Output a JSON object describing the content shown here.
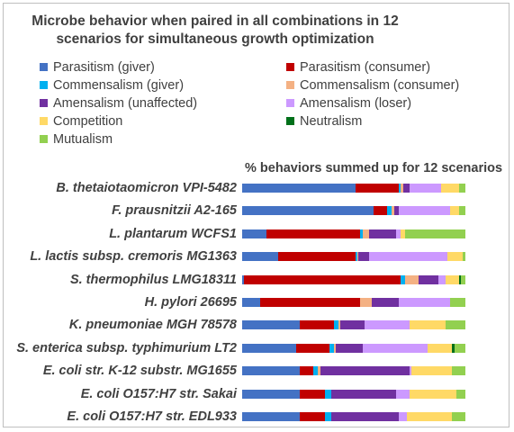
{
  "chart_data": {
    "type": "bar",
    "stacked": true,
    "orientation": "horizontal",
    "normalized": "percent",
    "title": "Microbe behavior when paired in all combinations in 12 scenarios for simultaneous growth optimization",
    "subtitle": "% behaviors summed up for 12 scenarios",
    "legend_placement": "top",
    "series": [
      {
        "name": "Parasitism (giver)",
        "color": "#4472c4",
        "values": [
          51,
          59,
          11,
          16,
          1,
          8,
          26,
          24,
          26,
          26,
          26
        ]
      },
      {
        "name": "Parasitism (consumer)",
        "color": "#c00000",
        "values": [
          19,
          6,
          42,
          35,
          70,
          45,
          15,
          15,
          6,
          11,
          11
        ]
      },
      {
        "name": "Commensalism (giver)",
        "color": "#00b0f0",
        "values": [
          1,
          2,
          1,
          0.5,
          2,
          0,
          2,
          2,
          2,
          3,
          3
        ]
      },
      {
        "name": "Commensalism (consumer)",
        "color": "#f4b183",
        "values": [
          1,
          1,
          3,
          0.5,
          6,
          5,
          1,
          1,
          1,
          0,
          0
        ]
      },
      {
        "name": "Amensalism (unaffected)",
        "color": "#7030a0",
        "values": [
          3,
          2,
          12,
          5,
          9,
          12,
          11,
          12,
          40,
          29,
          30
        ]
      },
      {
        "name": "Amensalism (loser)",
        "color": "#cc99ff",
        "values": [
          14,
          23,
          2,
          35,
          3,
          23,
          20,
          29,
          1,
          6,
          4
        ]
      },
      {
        "name": "Competition",
        "color": "#ffd966",
        "values": [
          8,
          4,
          2,
          7,
          6,
          0,
          16,
          11,
          18,
          21,
          20
        ]
      },
      {
        "name": "Neutralism",
        "color": "#00701a",
        "values": [
          0,
          0,
          0,
          0,
          1,
          0,
          0,
          1,
          0,
          0,
          0
        ]
      },
      {
        "name": "Mutualism",
        "color": "#92d050",
        "values": [
          3,
          3,
          27,
          1,
          2,
          7,
          9,
          5,
          6,
          4,
          6
        ]
      }
    ],
    "categories": [
      "B. thetaiotaomicron VPI-5482",
      "F. prausnitzii A2-165",
      "L. plantarum WCFS1",
      "L. lactis subsp. cremoris MG1363",
      "S. thermophilus LMG18311",
      "H. pylori 26695",
      "K. pneumoniae MGH 78578",
      "S. enterica subsp. typhimurium LT2",
      "E. coli str. K-12 substr. MG1655",
      "E. coli O157:H7 str. Sakai",
      "E. coli O157:H7 str. EDL933"
    ]
  }
}
